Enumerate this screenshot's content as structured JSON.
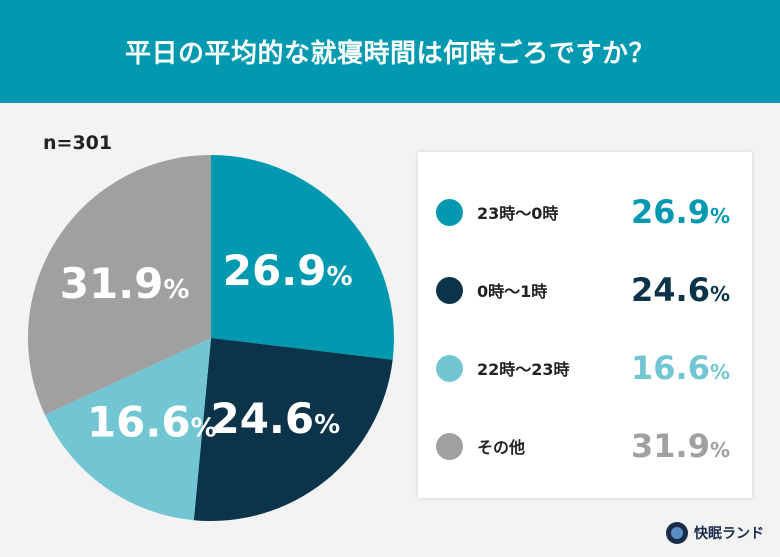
{
  "title": "平日の平均的な就寝時間は何時ごろですか？",
  "sample": "n=301",
  "chart_data": {
    "type": "pie",
    "title": "平日の平均的な就寝時間は何時ごろですか？",
    "start": "top-clockwise",
    "legend_placement": "right",
    "slices": [
      {
        "label": "23時〜0時",
        "value": 26.9,
        "display": "26.9",
        "color": "#0099b0"
      },
      {
        "label": "0時〜1時",
        "value": 24.6,
        "display": "24.6",
        "color": "#0b3349"
      },
      {
        "label": "22時〜23時",
        "value": 16.6,
        "display": "16.6",
        "color": "#72c6d4"
      },
      {
        "label": "その他",
        "value": 31.9,
        "display": "31.9",
        "color": "#a0a0a0"
      }
    ],
    "unit": "%"
  },
  "brand": "快眠ランド"
}
